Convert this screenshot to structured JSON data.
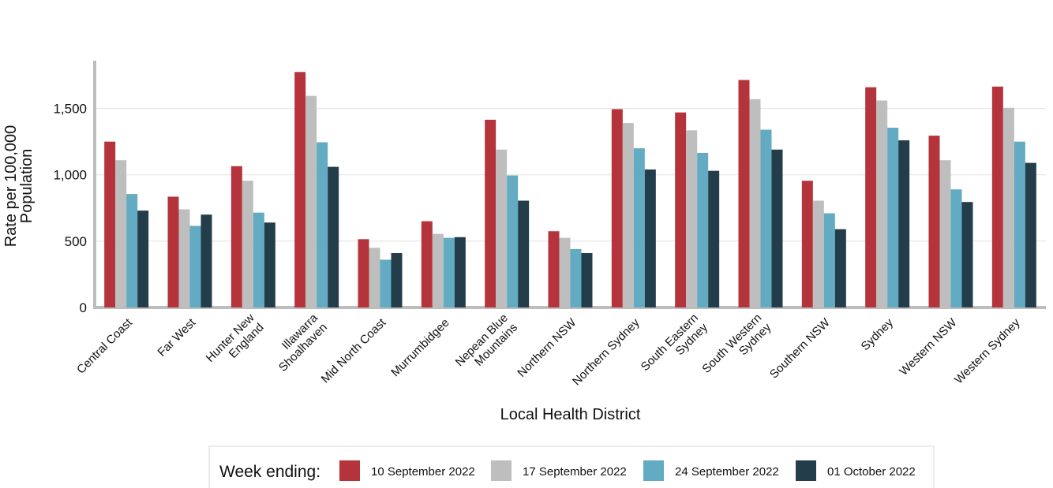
{
  "chart_data": {
    "type": "bar",
    "x_label": "Local Health District",
    "y_label": "Rate per 100,000\nPopulation",
    "legend_title": "Week ending:",
    "categories": [
      "Central Coast",
      "Far West",
      "Hunter New\nEngland",
      "Illawarra\nShoalhaven",
      "Mid North Coast",
      "Murrumbidgee",
      "Nepean Blue\nMountains",
      "Northern NSW",
      "Northern Sydney",
      "South Eastern\nSydney",
      "South Western\nSydney",
      "Southern NSW",
      "Sydney",
      "Western NSW",
      "Western Sydney"
    ],
    "series": [
      {
        "name": "10 September 2022",
        "color": "#b5343c",
        "values": [
          1250,
          835,
          1065,
          1775,
          515,
          650,
          1415,
          575,
          1495,
          1470,
          1715,
          955,
          1660,
          1295,
          1665
        ]
      },
      {
        "name": "17 September 2022",
        "color": "#bebebe",
        "values": [
          1110,
          740,
          955,
          1595,
          450,
          555,
          1190,
          525,
          1390,
          1335,
          1570,
          805,
          1560,
          1110,
          1505
        ]
      },
      {
        "name": "24 September 2022",
        "color": "#62abc3",
        "values": [
          855,
          615,
          715,
          1245,
          360,
          525,
          995,
          440,
          1200,
          1165,
          1340,
          710,
          1355,
          890,
          1250
        ]
      },
      {
        "name": "01 October 2022",
        "color": "#233e4a",
        "values": [
          730,
          700,
          640,
          1060,
          410,
          530,
          805,
          410,
          1040,
          1030,
          1190,
          590,
          1260,
          795,
          1090
        ]
      }
    ],
    "ylim": [
      0,
      1860
    ],
    "yticks": [
      0,
      500,
      {
        "value": 1000,
        "label": "1,000"
      },
      {
        "value": 1500,
        "label": "1,500"
      }
    ],
    "grid": true,
    "legend": "bottom"
  }
}
